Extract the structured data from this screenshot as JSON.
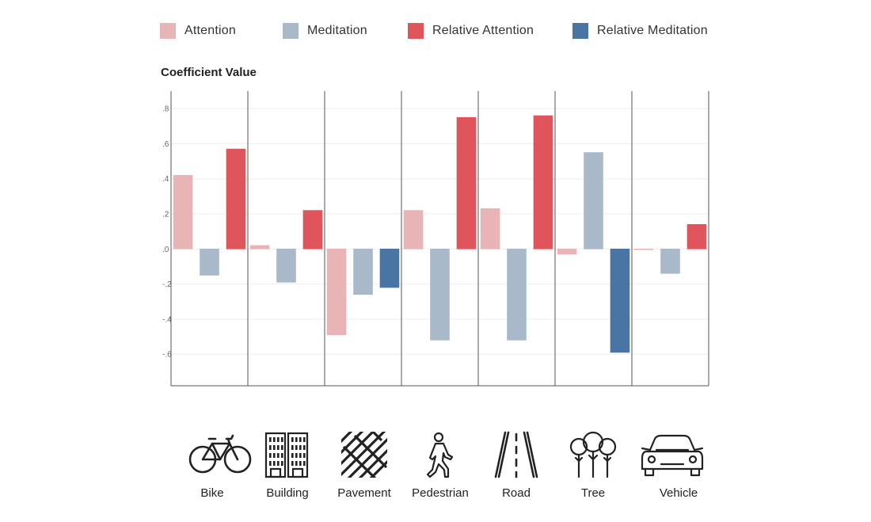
{
  "legend": {
    "items": [
      {
        "label": "Attention",
        "color": "#e8b4b6"
      },
      {
        "label": "Meditation",
        "color": "#a9b9ca"
      },
      {
        "label": "Relative Attention",
        "color": "#e0545b"
      },
      {
        "label": "Relative Meditation",
        "color": "#4a74a4"
      }
    ]
  },
  "chart_data": {
    "type": "bar",
    "title": "Coefficient Value",
    "xlabel": "",
    "ylabel": "",
    "ylim": [
      -0.78,
      0.9
    ],
    "yticks": [
      0.8,
      0.6,
      0.4,
      0.2,
      0.0,
      -0.2,
      -0.4,
      -0.6
    ],
    "ytick_labels": [
      ".8",
      ".6",
      ".4",
      ".2",
      ".0",
      "-.2",
      "-.4",
      "-.6"
    ],
    "grid": true,
    "legend_position": "top",
    "categories": [
      "Bike",
      "Building",
      "Pavement",
      "Pedestrian",
      "Road",
      "Tree",
      "Vehicle"
    ],
    "series": [
      {
        "name": "Attention",
        "color": "#e8b4b6",
        "values": [
          0.42,
          0.02,
          -0.49,
          0.22,
          0.23,
          -0.03,
          0.0
        ]
      },
      {
        "name": "Meditation",
        "color": "#a9b9ca",
        "values": [
          -0.15,
          -0.19,
          -0.26,
          -0.52,
          -0.52,
          0.55,
          -0.14
        ]
      },
      {
        "name": "Relative Attention",
        "color": "#e0545b",
        "values": [
          0.57,
          0.22,
          null,
          0.75,
          0.76,
          null,
          0.14
        ]
      },
      {
        "name": "Relative Meditation",
        "color": "#4a74a4",
        "values": [
          null,
          null,
          -0.22,
          null,
          null,
          -0.59,
          null
        ]
      }
    ]
  },
  "icons": [
    {
      "label": "Bike",
      "icon": "bike-icon"
    },
    {
      "label": "Building",
      "icon": "building-icon"
    },
    {
      "label": "Pavement",
      "icon": "pavement-icon"
    },
    {
      "label": "Pedestrian",
      "icon": "pedestrian-icon"
    },
    {
      "label": "Road",
      "icon": "road-icon"
    },
    {
      "label": "Tree",
      "icon": "tree-icon"
    },
    {
      "label": "Vehicle",
      "icon": "vehicle-icon"
    }
  ]
}
